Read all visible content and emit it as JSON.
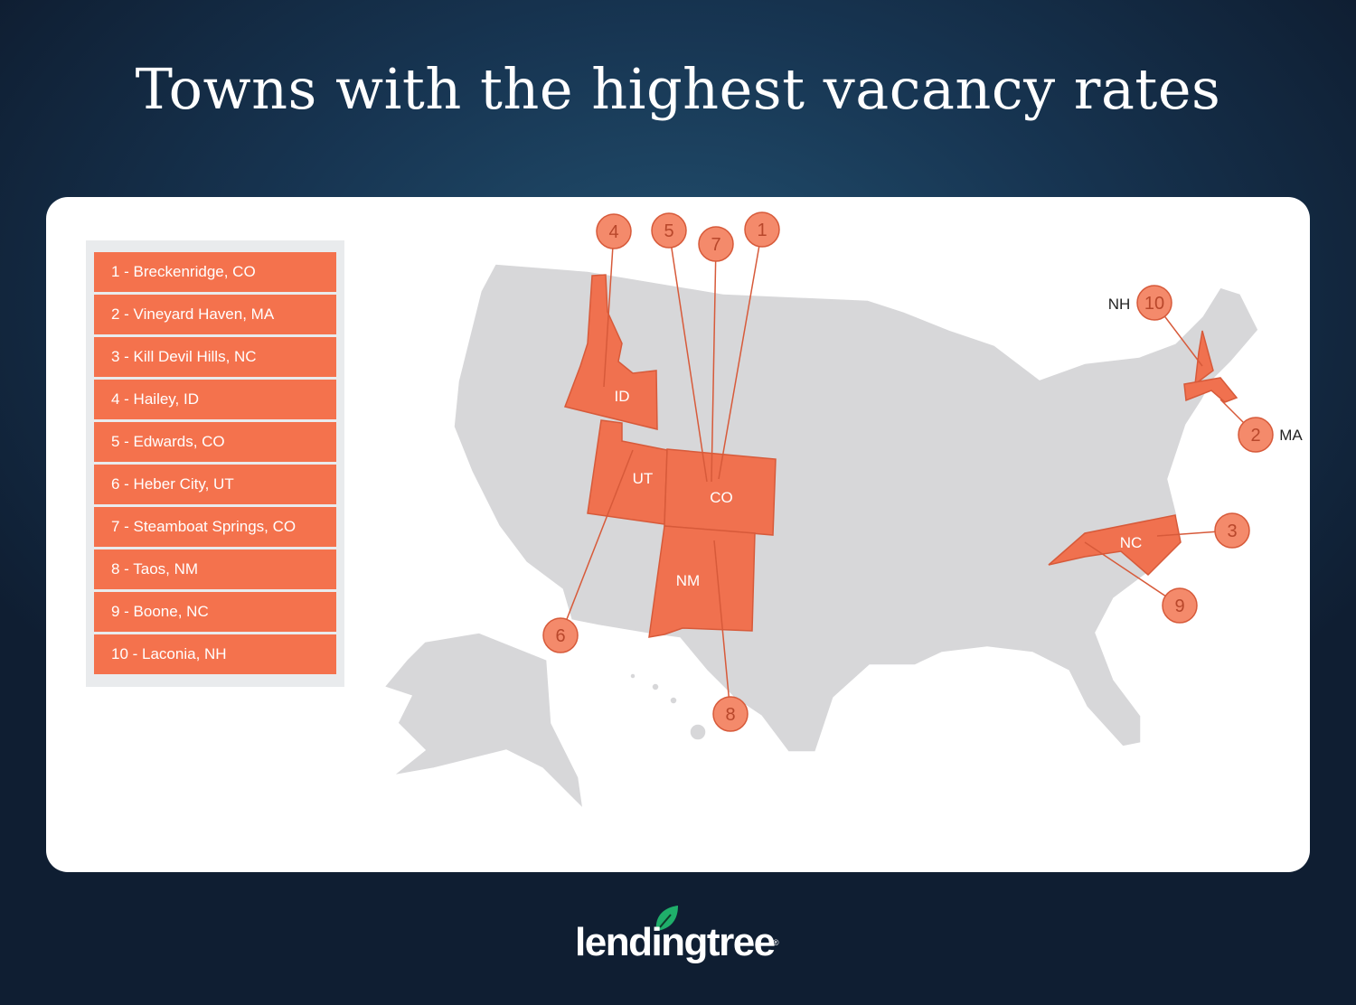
{
  "title": "Towns with the highest vacancy rates",
  "legend": [
    "1 - Breckenridge, CO",
    "2 - Vineyard Haven, MA",
    "3 - Kill Devil Hills, NC",
    "4 - Hailey, ID",
    "5 - Edwards, CO",
    "6 - Heber City, UT",
    "7 - Steamboat Springs, CO",
    "8 - Taos, NM",
    "9 - Boone, NC",
    "10 - Laconia, NH"
  ],
  "states": {
    "ID": "ID",
    "UT": "UT",
    "CO": "CO",
    "NM": "NM",
    "NC": "NC",
    "NH": "NH",
    "MA": "MA"
  },
  "markers": {
    "m1": "1",
    "m2": "2",
    "m3": "3",
    "m4": "4",
    "m5": "5",
    "m6": "6",
    "m7": "7",
    "m8": "8",
    "m9": "9",
    "m10": "10"
  },
  "colors": {
    "highlight": "#f0714f",
    "base": "#d7d7d9",
    "marker": "#f48a6b",
    "legend": "#f4724d"
  },
  "logo": "lendingtree"
}
